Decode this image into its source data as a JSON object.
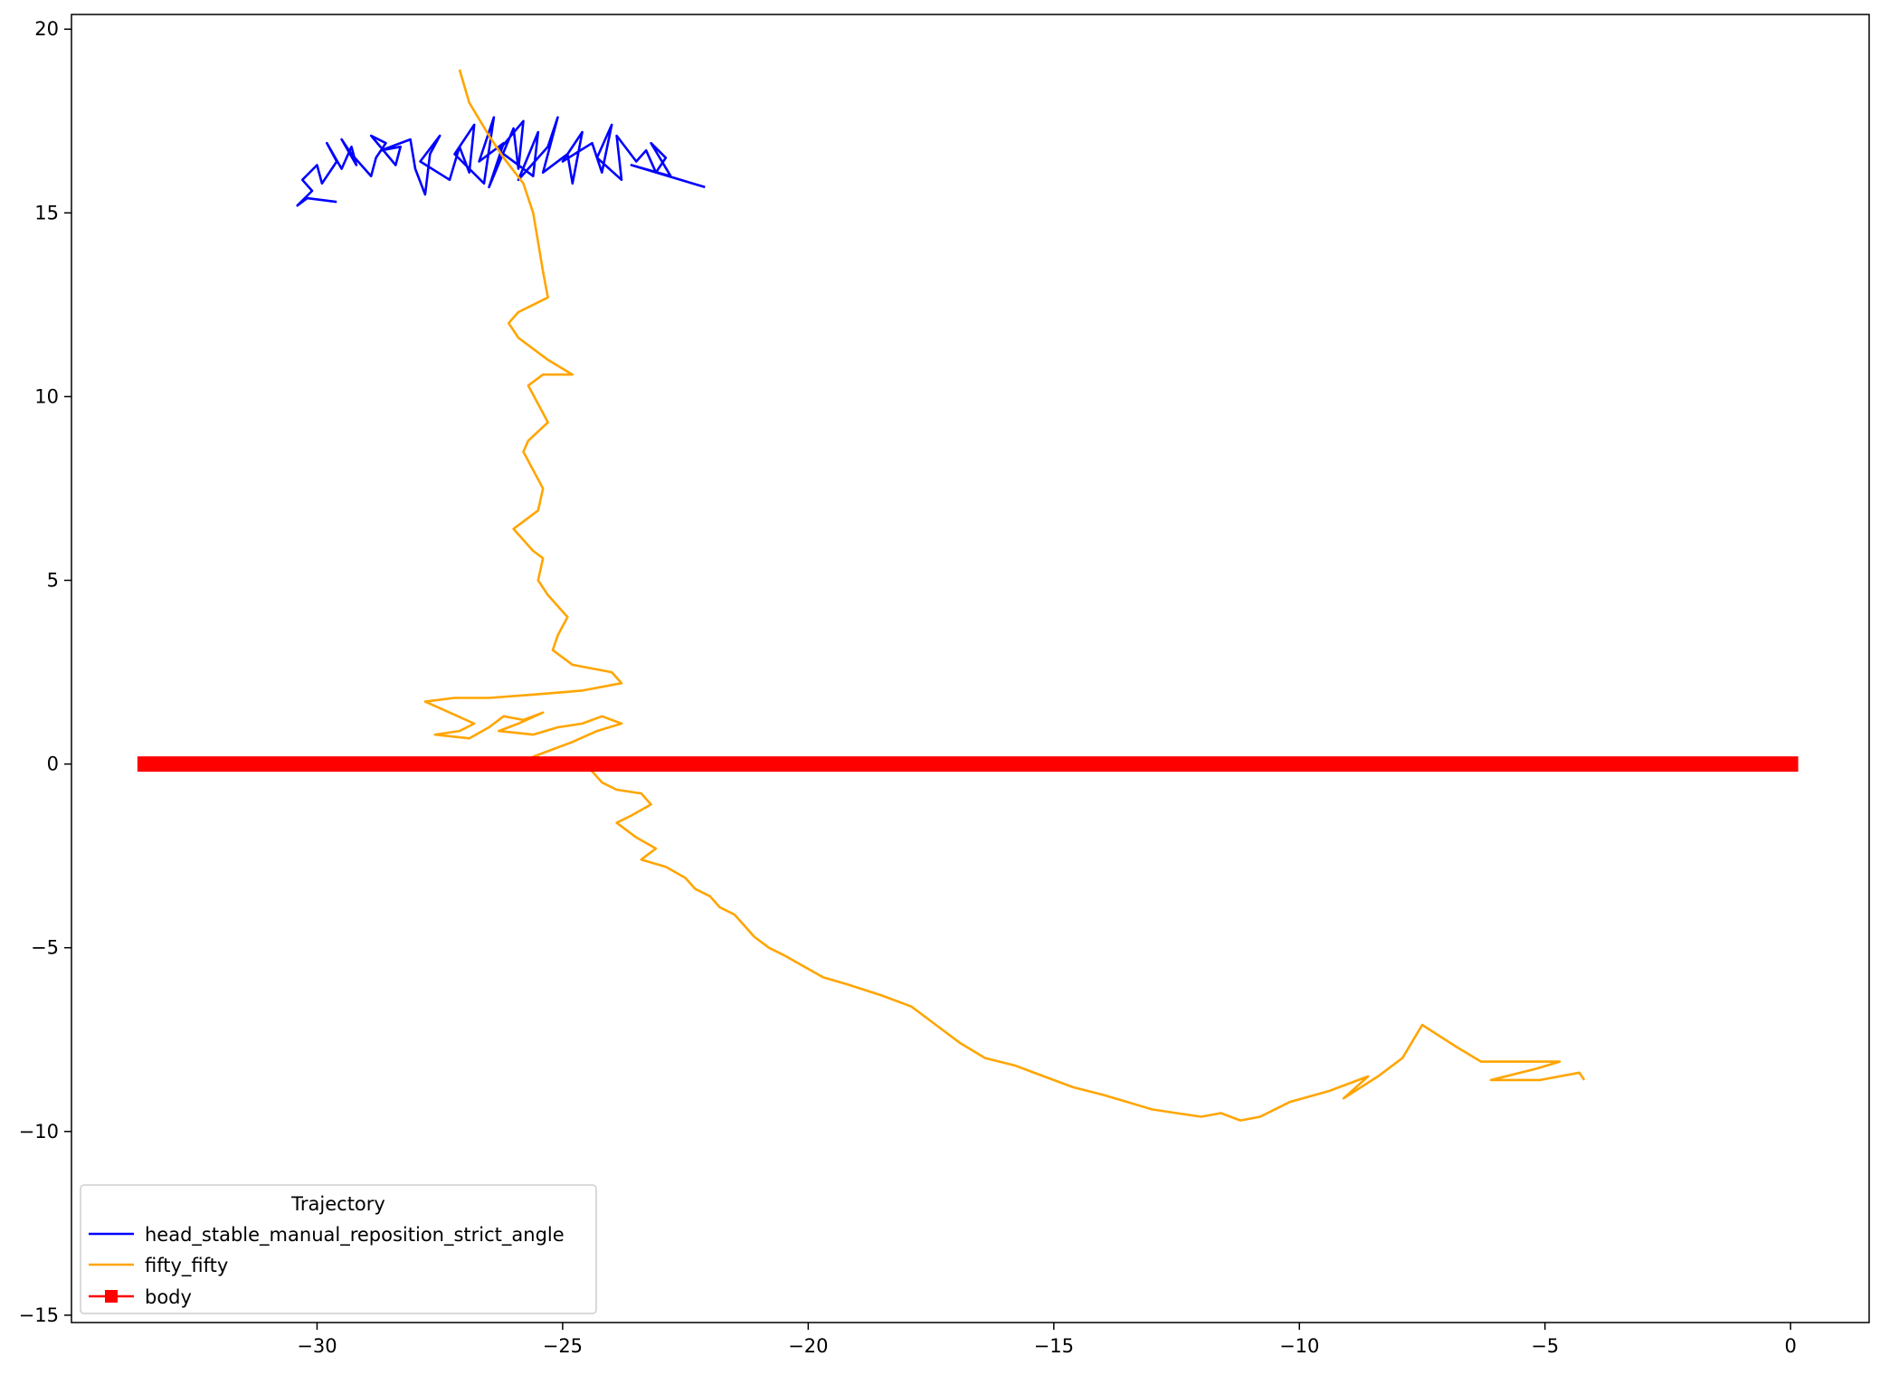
{
  "chart_data": {
    "type": "line",
    "title": "",
    "xlabel": "",
    "ylabel": "",
    "xlim": [
      -35,
      1.6
    ],
    "ylim": [
      -15.2,
      20.4
    ],
    "xticks": [
      -30,
      -25,
      -20,
      -15,
      -10,
      -5,
      0
    ],
    "yticks": [
      -15,
      -10,
      -5,
      0,
      5,
      10,
      15,
      20
    ],
    "xtick_labels": [
      "−30",
      "−25",
      "−20",
      "−15",
      "−10",
      "−5",
      "0"
    ],
    "ytick_labels": [
      "−15",
      "−10",
      "−5",
      "0",
      "5",
      "10",
      "15",
      "20"
    ],
    "grid": false,
    "legend": {
      "title": "Trajectory",
      "placement": "lower-left",
      "entries": [
        {
          "label": "head_stable_manual_reposition_strict_angle",
          "color": "#0000ff",
          "marker": "none"
        },
        {
          "label": "fifty_fifty",
          "color": "#ffa500",
          "marker": "none"
        },
        {
          "label": "body",
          "color": "#ff0000",
          "marker": "square"
        }
      ]
    },
    "series": [
      {
        "name": "head_stable_manual_reposition_strict_angle",
        "color": "#0000ff",
        "points": [
          [
            -29.6,
            15.3
          ],
          [
            -30.2,
            15.4
          ],
          [
            -30.4,
            15.2
          ],
          [
            -30.1,
            15.6
          ],
          [
            -30.3,
            15.9
          ],
          [
            -30.0,
            16.3
          ],
          [
            -29.9,
            15.8
          ],
          [
            -29.6,
            16.4
          ],
          [
            -29.8,
            16.9
          ],
          [
            -29.5,
            16.2
          ],
          [
            -29.3,
            16.8
          ],
          [
            -29.2,
            16.3
          ],
          [
            -29.5,
            17.0
          ],
          [
            -29.3,
            16.6
          ],
          [
            -28.9,
            16.0
          ],
          [
            -28.8,
            16.5
          ],
          [
            -28.6,
            16.9
          ],
          [
            -28.9,
            17.1
          ],
          [
            -28.4,
            16.3
          ],
          [
            -28.3,
            16.8
          ],
          [
            -28.7,
            16.7
          ],
          [
            -28.1,
            17.0
          ],
          [
            -28.0,
            16.2
          ],
          [
            -27.8,
            15.5
          ],
          [
            -27.7,
            16.6
          ],
          [
            -27.5,
            17.1
          ],
          [
            -27.9,
            16.4
          ],
          [
            -27.3,
            15.9
          ],
          [
            -27.1,
            16.8
          ],
          [
            -26.9,
            16.1
          ],
          [
            -26.8,
            17.4
          ],
          [
            -27.2,
            16.6
          ],
          [
            -26.6,
            15.8
          ],
          [
            -26.4,
            17.6
          ],
          [
            -26.7,
            16.4
          ],
          [
            -26.2,
            16.9
          ],
          [
            -26.5,
            15.7
          ],
          [
            -26.0,
            17.3
          ],
          [
            -25.9,
            16.2
          ],
          [
            -25.8,
            17.5
          ],
          [
            -26.3,
            16.7
          ],
          [
            -25.6,
            16.0
          ],
          [
            -25.5,
            17.2
          ],
          [
            -25.9,
            15.9
          ],
          [
            -25.3,
            16.8
          ],
          [
            -25.1,
            17.6
          ],
          [
            -25.4,
            16.1
          ],
          [
            -24.9,
            16.6
          ],
          [
            -24.8,
            15.8
          ],
          [
            -24.6,
            17.2
          ],
          [
            -25.0,
            16.4
          ],
          [
            -24.4,
            16.9
          ],
          [
            -24.2,
            16.1
          ],
          [
            -24.0,
            17.4
          ],
          [
            -24.3,
            16.5
          ],
          [
            -23.8,
            15.9
          ],
          [
            -23.9,
            17.1
          ],
          [
            -23.5,
            16.4
          ],
          [
            -23.3,
            16.7
          ],
          [
            -23.1,
            16.1
          ],
          [
            -22.9,
            16.5
          ],
          [
            -23.2,
            16.9
          ],
          [
            -22.8,
            16.0
          ],
          [
            -23.6,
            16.3
          ],
          [
            -22.1,
            15.7
          ]
        ]
      },
      {
        "name": "fifty_fifty",
        "color": "#ffa500",
        "points": [
          [
            -27.1,
            18.9
          ],
          [
            -26.9,
            18.0
          ],
          [
            -26.5,
            17.1
          ],
          [
            -26.2,
            16.5
          ],
          [
            -25.8,
            15.8
          ],
          [
            -25.6,
            15.0
          ],
          [
            -25.5,
            14.2
          ],
          [
            -25.4,
            13.4
          ],
          [
            -25.3,
            12.7
          ],
          [
            -25.6,
            12.5
          ],
          [
            -25.9,
            12.3
          ],
          [
            -26.1,
            12.0
          ],
          [
            -25.9,
            11.6
          ],
          [
            -25.6,
            11.3
          ],
          [
            -25.3,
            11.0
          ],
          [
            -24.8,
            10.6
          ],
          [
            -25.4,
            10.6
          ],
          [
            -25.7,
            10.3
          ],
          [
            -25.5,
            9.8
          ],
          [
            -25.3,
            9.3
          ],
          [
            -25.7,
            8.8
          ],
          [
            -25.8,
            8.5
          ],
          [
            -25.6,
            8.0
          ],
          [
            -25.4,
            7.5
          ],
          [
            -25.5,
            6.9
          ],
          [
            -26.0,
            6.4
          ],
          [
            -25.6,
            5.8
          ],
          [
            -25.4,
            5.6
          ],
          [
            -25.5,
            5.0
          ],
          [
            -25.3,
            4.6
          ],
          [
            -24.9,
            4.0
          ],
          [
            -25.1,
            3.5
          ],
          [
            -25.2,
            3.1
          ],
          [
            -24.8,
            2.7
          ],
          [
            -24.0,
            2.5
          ],
          [
            -23.8,
            2.2
          ],
          [
            -24.6,
            2.0
          ],
          [
            -25.5,
            1.9
          ],
          [
            -26.5,
            1.8
          ],
          [
            -27.2,
            1.8
          ],
          [
            -27.8,
            1.7
          ],
          [
            -27.3,
            1.4
          ],
          [
            -26.8,
            1.1
          ],
          [
            -27.1,
            0.9
          ],
          [
            -27.6,
            0.8
          ],
          [
            -26.9,
            0.7
          ],
          [
            -26.5,
            1.0
          ],
          [
            -26.2,
            1.3
          ],
          [
            -25.8,
            1.2
          ],
          [
            -25.4,
            1.4
          ],
          [
            -25.9,
            1.1
          ],
          [
            -26.3,
            0.9
          ],
          [
            -25.6,
            0.8
          ],
          [
            -25.1,
            1.0
          ],
          [
            -24.6,
            1.1
          ],
          [
            -24.2,
            1.3
          ],
          [
            -23.8,
            1.1
          ],
          [
            -24.3,
            0.9
          ],
          [
            -24.8,
            0.6
          ],
          [
            -25.2,
            0.4
          ],
          [
            -25.6,
            0.2
          ],
          [
            -25.1,
            0.1
          ],
          [
            -24.7,
            0.0
          ],
          [
            -24.4,
            -0.2
          ],
          [
            -24.2,
            -0.5
          ],
          [
            -23.9,
            -0.7
          ],
          [
            -23.4,
            -0.8
          ],
          [
            -23.2,
            -1.1
          ],
          [
            -23.6,
            -1.4
          ],
          [
            -23.9,
            -1.6
          ],
          [
            -23.5,
            -2.0
          ],
          [
            -23.1,
            -2.3
          ],
          [
            -23.4,
            -2.6
          ],
          [
            -22.9,
            -2.8
          ],
          [
            -22.5,
            -3.1
          ],
          [
            -22.3,
            -3.4
          ],
          [
            -22.0,
            -3.6
          ],
          [
            -21.8,
            -3.9
          ],
          [
            -21.5,
            -4.1
          ],
          [
            -21.3,
            -4.4
          ],
          [
            -21.1,
            -4.7
          ],
          [
            -20.8,
            -5.0
          ],
          [
            -20.5,
            -5.2
          ],
          [
            -20.1,
            -5.5
          ],
          [
            -19.7,
            -5.8
          ],
          [
            -19.2,
            -6.0
          ],
          [
            -18.5,
            -6.3
          ],
          [
            -17.9,
            -6.6
          ],
          [
            -17.4,
            -7.1
          ],
          [
            -16.9,
            -7.6
          ],
          [
            -16.4,
            -8.0
          ],
          [
            -15.8,
            -8.2
          ],
          [
            -15.2,
            -8.5
          ],
          [
            -14.6,
            -8.8
          ],
          [
            -14.0,
            -9.0
          ],
          [
            -13.5,
            -9.2
          ],
          [
            -13.0,
            -9.4
          ],
          [
            -12.5,
            -9.5
          ],
          [
            -12.0,
            -9.6
          ],
          [
            -11.6,
            -9.5
          ],
          [
            -11.2,
            -9.7
          ],
          [
            -10.8,
            -9.6
          ],
          [
            -10.2,
            -9.2
          ],
          [
            -9.4,
            -8.9
          ],
          [
            -8.6,
            -8.5
          ],
          [
            -9.1,
            -9.1
          ],
          [
            -8.4,
            -8.5
          ],
          [
            -7.9,
            -8.0
          ],
          [
            -7.5,
            -7.1
          ],
          [
            -6.8,
            -7.7
          ],
          [
            -6.3,
            -8.1
          ],
          [
            -5.5,
            -8.1
          ],
          [
            -4.7,
            -8.1
          ],
          [
            -5.2,
            -8.3
          ],
          [
            -6.1,
            -8.6
          ],
          [
            -5.1,
            -8.6
          ],
          [
            -4.3,
            -8.4
          ],
          [
            -4.2,
            -8.6
          ]
        ]
      },
      {
        "name": "body",
        "color": "#ff0000",
        "points": [
          [
            -33.5,
            0.0
          ],
          [
            0.0,
            0.0
          ]
        ]
      }
    ]
  }
}
